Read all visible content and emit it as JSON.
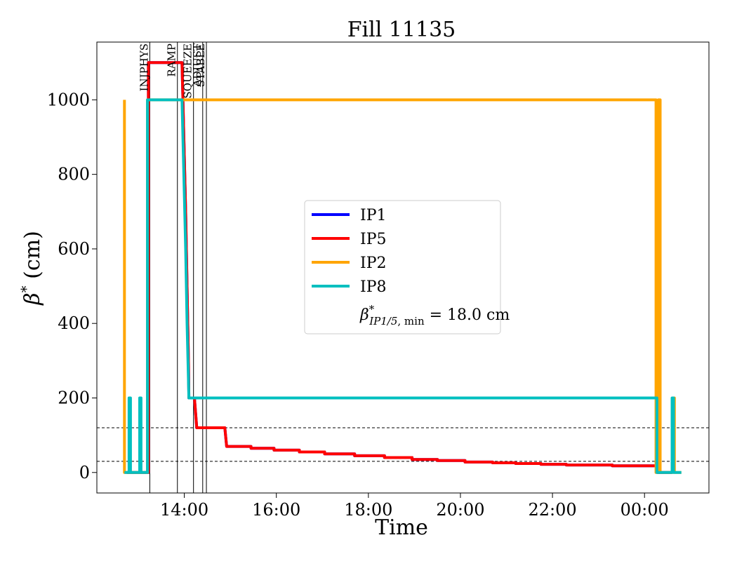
{
  "chart_data": {
    "type": "line",
    "title": "Fill 11135",
    "xlabel": "Time",
    "ylabel": "β* (cm)",
    "x_unit": "hours since 00:00 of the fill start day",
    "xlim": [
      12.1,
      25.4
    ],
    "ylim": [
      -55,
      1155
    ],
    "x_ticks": [
      {
        "value": 14,
        "label": "14:00"
      },
      {
        "value": 16,
        "label": "16:00"
      },
      {
        "value": 18,
        "label": "18:00"
      },
      {
        "value": 20,
        "label": "20:00"
      },
      {
        "value": 22,
        "label": "22:00"
      },
      {
        "value": 24,
        "label": "00:00"
      }
    ],
    "y_ticks": [
      0,
      200,
      400,
      600,
      800,
      1000
    ],
    "grid": false,
    "legend_position": "center",
    "legend_note": "β*IP1/5, min = 18.0 cm",
    "hlines": [
      120,
      30
    ],
    "phases": [
      {
        "label": "INJPHYS",
        "x": 13.25
      },
      {
        "label": "RAMP",
        "x": 13.85
      },
      {
        "label": "SQUEEZE",
        "x": 14.2
      },
      {
        "label": "ADJUST",
        "x": 14.4
      },
      {
        "label": "STABLE",
        "x": 14.48
      }
    ],
    "series": [
      {
        "name": "IP1",
        "color": "#0000ff",
        "points": [
          [
            12.75,
            0
          ],
          [
            13.22,
            0
          ],
          [
            13.22,
            1100
          ],
          [
            13.95,
            1100
          ],
          [
            13.99,
            900
          ],
          [
            14.03,
            700
          ],
          [
            14.06,
            500
          ],
          [
            14.09,
            300
          ],
          [
            14.1,
            200
          ],
          [
            14.22,
            200
          ],
          [
            14.27,
            120
          ],
          [
            14.88,
            120
          ],
          [
            14.92,
            70
          ],
          [
            15.45,
            70
          ],
          [
            15.45,
            65
          ],
          [
            15.95,
            65
          ],
          [
            15.95,
            60
          ],
          [
            16.5,
            60
          ],
          [
            16.5,
            55
          ],
          [
            17.05,
            55
          ],
          [
            17.05,
            50
          ],
          [
            17.7,
            50
          ],
          [
            17.7,
            45
          ],
          [
            18.35,
            45
          ],
          [
            18.35,
            40
          ],
          [
            18.95,
            40
          ],
          [
            18.95,
            35
          ],
          [
            19.5,
            35
          ],
          [
            19.5,
            32
          ],
          [
            20.1,
            32
          ],
          [
            20.1,
            28
          ],
          [
            20.7,
            28
          ],
          [
            20.7,
            26
          ],
          [
            21.2,
            26
          ],
          [
            21.2,
            24
          ],
          [
            21.75,
            24
          ],
          [
            21.75,
            22
          ],
          [
            22.3,
            22
          ],
          [
            22.3,
            20
          ],
          [
            23.3,
            20
          ],
          [
            23.3,
            18
          ],
          [
            24.28,
            18
          ],
          [
            24.28,
            0
          ],
          [
            24.6,
            0
          ]
        ]
      },
      {
        "name": "IP5",
        "color": "#ff0000",
        "points": [
          [
            12.75,
            0
          ],
          [
            13.22,
            0
          ],
          [
            13.22,
            1100
          ],
          [
            13.95,
            1100
          ],
          [
            13.99,
            900
          ],
          [
            14.03,
            700
          ],
          [
            14.06,
            500
          ],
          [
            14.09,
            300
          ],
          [
            14.1,
            200
          ],
          [
            14.22,
            200
          ],
          [
            14.27,
            120
          ],
          [
            14.88,
            120
          ],
          [
            14.92,
            70
          ],
          [
            15.45,
            70
          ],
          [
            15.45,
            65
          ],
          [
            15.95,
            65
          ],
          [
            15.95,
            60
          ],
          [
            16.5,
            60
          ],
          [
            16.5,
            55
          ],
          [
            17.05,
            55
          ],
          [
            17.05,
            50
          ],
          [
            17.7,
            50
          ],
          [
            17.7,
            45
          ],
          [
            18.35,
            45
          ],
          [
            18.35,
            40
          ],
          [
            18.95,
            40
          ],
          [
            18.95,
            35
          ],
          [
            19.5,
            35
          ],
          [
            19.5,
            32
          ],
          [
            20.1,
            32
          ],
          [
            20.1,
            28
          ],
          [
            20.7,
            28
          ],
          [
            20.7,
            26
          ],
          [
            21.2,
            26
          ],
          [
            21.2,
            24
          ],
          [
            21.75,
            24
          ],
          [
            21.75,
            22
          ],
          [
            22.3,
            22
          ],
          [
            22.3,
            20
          ],
          [
            23.3,
            20
          ],
          [
            23.3,
            18
          ],
          [
            24.28,
            18
          ],
          [
            24.28,
            0
          ],
          [
            24.6,
            0
          ]
        ]
      },
      {
        "name": "IP2",
        "color": "#ffa500",
        "points": [
          [
            12.7,
            1000
          ],
          [
            12.7,
            0
          ],
          [
            12.8,
            0
          ],
          [
            12.8,
            200
          ],
          [
            12.82,
            200
          ],
          [
            12.82,
            0
          ],
          [
            13.2,
            0
          ],
          [
            13.2,
            1000
          ],
          [
            24.25,
            1000
          ],
          [
            24.25,
            0
          ],
          [
            24.3,
            0
          ],
          [
            24.3,
            1000
          ],
          [
            24.34,
            1000
          ],
          [
            24.34,
            0
          ],
          [
            24.62,
            0
          ],
          [
            24.62,
            200
          ],
          [
            24.65,
            200
          ],
          [
            24.65,
            0
          ],
          [
            24.8,
            0
          ]
        ]
      },
      {
        "name": "IP8",
        "color": "#00bfbf",
        "points": [
          [
            12.7,
            0
          ],
          [
            12.8,
            0
          ],
          [
            12.8,
            200
          ],
          [
            12.83,
            200
          ],
          [
            12.83,
            0
          ],
          [
            13.03,
            0
          ],
          [
            13.03,
            200
          ],
          [
            13.06,
            200
          ],
          [
            13.06,
            0
          ],
          [
            13.2,
            0
          ],
          [
            13.2,
            1000
          ],
          [
            13.95,
            1000
          ],
          [
            13.99,
            800
          ],
          [
            14.03,
            600
          ],
          [
            14.06,
            400
          ],
          [
            14.1,
            200
          ],
          [
            24.27,
            200
          ],
          [
            24.27,
            0
          ],
          [
            24.6,
            0
          ],
          [
            24.6,
            200
          ],
          [
            24.63,
            200
          ],
          [
            24.63,
            0
          ],
          [
            24.8,
            0
          ]
        ]
      }
    ]
  }
}
